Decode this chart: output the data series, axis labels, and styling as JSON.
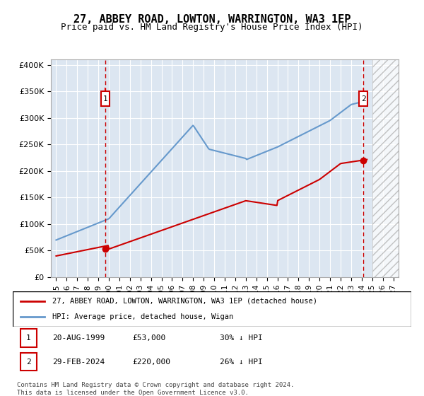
{
  "title": "27, ABBEY ROAD, LOWTON, WARRINGTON, WA3 1EP",
  "subtitle": "Price paid vs. HM Land Registry's House Price Index (HPI)",
  "ylabel": "",
  "xlabel": "",
  "title_fontsize": 11,
  "subtitle_fontsize": 9,
  "background_color": "#ffffff",
  "plot_bg_color": "#dce6f1",
  "grid_color": "#ffffff",
  "sale1_date": 1999.64,
  "sale1_price": 53000,
  "sale1_label": "1",
  "sale2_date": 2024.16,
  "sale2_price": 220000,
  "sale2_label": "2",
  "hatch_start": 2025.0,
  "hatch_end": 2027.5,
  "ylim": [
    0,
    410000
  ],
  "xlim_start": 1994.5,
  "xlim_end": 2027.5,
  "yticks": [
    0,
    50000,
    100000,
    150000,
    200000,
    250000,
    300000,
    350000,
    400000
  ],
  "ytick_labels": [
    "£0",
    "£50K",
    "£100K",
    "£150K",
    "£200K",
    "£250K",
    "£300K",
    "£350K",
    "£400K"
  ],
  "xticks": [
    1995,
    1996,
    1997,
    1998,
    1999,
    2000,
    2001,
    2002,
    2003,
    2004,
    2005,
    2006,
    2007,
    2008,
    2009,
    2010,
    2011,
    2012,
    2013,
    2014,
    2015,
    2016,
    2017,
    2018,
    2019,
    2020,
    2021,
    2022,
    2023,
    2024,
    2025,
    2026,
    2027
  ],
  "legend_line1": "27, ABBEY ROAD, LOWTON, WARRINGTON, WA3 1EP (detached house)",
  "legend_line2": "HPI: Average price, detached house, Wigan",
  "table_row1": [
    "1",
    "20-AUG-1999",
    "£53,000",
    "30% ↓ HPI"
  ],
  "table_row2": [
    "2",
    "29-FEB-2024",
    "£220,000",
    "26% ↓ HPI"
  ],
  "footer": "Contains HM Land Registry data © Crown copyright and database right 2024.\nThis data is licensed under the Open Government Licence v3.0.",
  "line_color_property": "#cc0000",
  "line_color_hpi": "#6699cc",
  "marker_color": "#cc0000"
}
